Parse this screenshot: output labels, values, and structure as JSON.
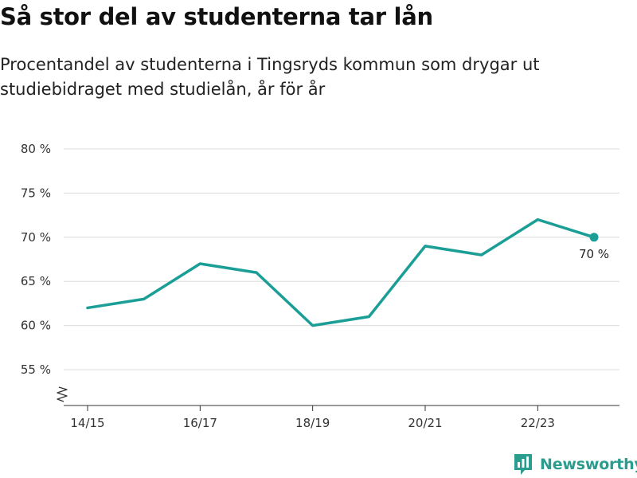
{
  "header": {
    "title": "Så stor del av studenterna tar lån",
    "subtitle": "Procentandel av studenterna i Tingsryds kommun som drygar ut studiebidraget med studielån, år för år"
  },
  "brand": {
    "name": "Newsworthy",
    "icon": "bar-chart-logo-icon",
    "color": "#2a9d8f"
  },
  "chart_data": {
    "type": "line",
    "x": [
      "14/15",
      "15/16",
      "16/17",
      "17/18",
      "18/19",
      "19/20",
      "20/21",
      "21/22",
      "22/23",
      "23/24"
    ],
    "x_tick_labels": [
      "14/15",
      "16/17",
      "18/19",
      "20/21",
      "22/23"
    ],
    "series": [
      {
        "values": [
          62,
          63,
          67,
          66,
          60,
          61,
          69,
          68,
          72,
          70
        ],
        "color": "#1a9e96"
      }
    ],
    "last_point_label": "70 %",
    "y_ticks": [
      55,
      60,
      65,
      70,
      75,
      80
    ],
    "y_tick_suffix": " %",
    "ylim": [
      55,
      80
    ],
    "y_axis_break": true,
    "grid": true,
    "xlabel": "",
    "ylabel": ""
  }
}
